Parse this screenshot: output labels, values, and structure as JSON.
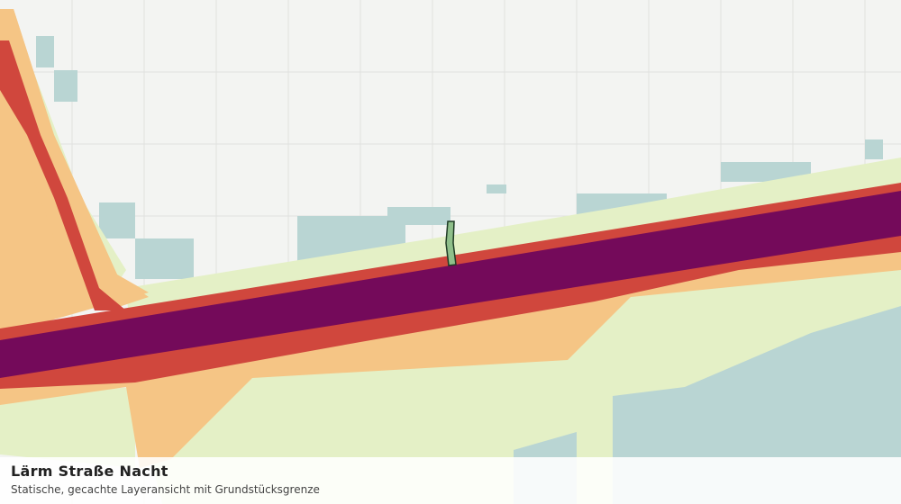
{
  "map_view": {
    "title": "Lärm Straße Nacht",
    "subtitle": "Statische, gecachte Layeransicht mit Grundstücksgrenze"
  }
}
